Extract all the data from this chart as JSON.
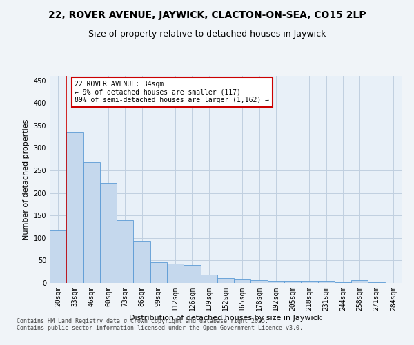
{
  "title": "22, ROVER AVENUE, JAYWICK, CLACTON-ON-SEA, CO15 2LP",
  "subtitle": "Size of property relative to detached houses in Jaywick",
  "xlabel": "Distribution of detached houses by size in Jaywick",
  "ylabel": "Number of detached properties",
  "categories": [
    "20sqm",
    "33sqm",
    "46sqm",
    "60sqm",
    "73sqm",
    "86sqm",
    "99sqm",
    "112sqm",
    "126sqm",
    "139sqm",
    "152sqm",
    "165sqm",
    "178sqm",
    "192sqm",
    "205sqm",
    "218sqm",
    "231sqm",
    "244sqm",
    "258sqm",
    "271sqm",
    "284sqm"
  ],
  "values": [
    116,
    335,
    268,
    222,
    140,
    93,
    46,
    43,
    40,
    18,
    11,
    8,
    6,
    5,
    4,
    4,
    4,
    2,
    6,
    2,
    0
  ],
  "bar_color": "#c5d8ed",
  "bar_edge_color": "#5b9bd5",
  "vline_color": "#cc0000",
  "annotation_text": "22 ROVER AVENUE: 34sqm\n← 9% of detached houses are smaller (117)\n89% of semi-detached houses are larger (1,162) →",
  "annotation_box_color": "#cc0000",
  "ylim": [
    0,
    460
  ],
  "yticks": [
    0,
    50,
    100,
    150,
    200,
    250,
    300,
    350,
    400,
    450
  ],
  "grid_color": "#c0cfe0",
  "background_color": "#e8f0f8",
  "fig_background_color": "#f0f4f8",
  "footer_text": "Contains HM Land Registry data © Crown copyright and database right 2025.\nContains public sector information licensed under the Open Government Licence v3.0.",
  "title_fontsize": 10,
  "subtitle_fontsize": 9,
  "axis_label_fontsize": 8,
  "tick_fontsize": 7,
  "footer_fontsize": 6
}
